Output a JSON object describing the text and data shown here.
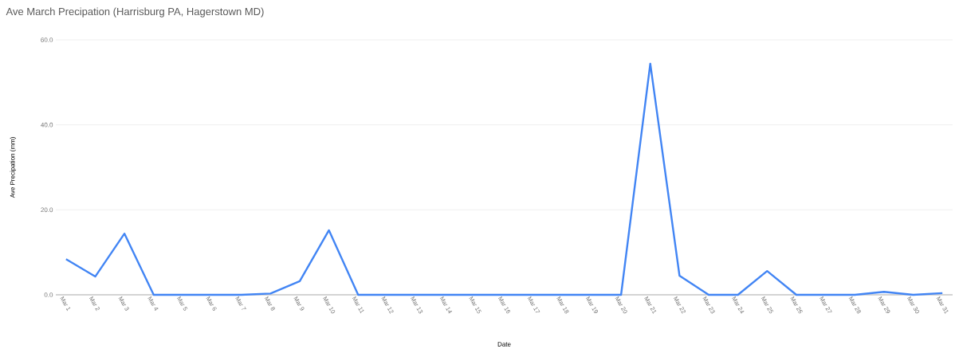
{
  "chart_data": {
    "type": "line",
    "title": "Ave March Precipation (Harrisburg PA, Hagerstown MD)",
    "xlabel": "Date",
    "ylabel": "Ave Precipation (mm)",
    "categories": [
      "Mar 1",
      "Mar 2",
      "Mar 3",
      "Mar 4",
      "Mar 5",
      "Mar 6",
      "Mar 7",
      "Mar 8",
      "Mar 9",
      "Mar 10",
      "Mar 11",
      "Mar 12",
      "Mar 13",
      "Mar 14",
      "Mar 15",
      "Mar 16",
      "Mar 17",
      "Mar 18",
      "Mar 19",
      "Mar 20",
      "Mar 21",
      "Mar 22",
      "Mar 23",
      "Mar 24",
      "Mar 25",
      "Mar 26",
      "Mar 27",
      "Mar 28",
      "Mar 29",
      "Mar 30",
      "Mar 31"
    ],
    "series": [
      {
        "color": "#4285f4",
        "values": [
          8.4,
          4.3,
          14.4,
          0,
          0,
          0,
          0,
          0.3,
          3.2,
          15.2,
          0,
          0,
          0,
          0,
          0,
          0,
          0,
          0,
          0,
          0,
          54.4,
          4.5,
          0,
          0,
          5.6,
          0,
          0,
          0,
          0.7,
          0,
          0.4
        ]
      }
    ],
    "ylim": [
      0,
      60
    ],
    "yticks": [
      {
        "value": 0,
        "label": "0.0"
      },
      {
        "value": 20,
        "label": "20.0"
      },
      {
        "value": 40,
        "label": "40.0"
      },
      {
        "value": 60,
        "label": "60.0"
      }
    ],
    "grid": "y",
    "marker": "none",
    "line_style": "solid"
  }
}
